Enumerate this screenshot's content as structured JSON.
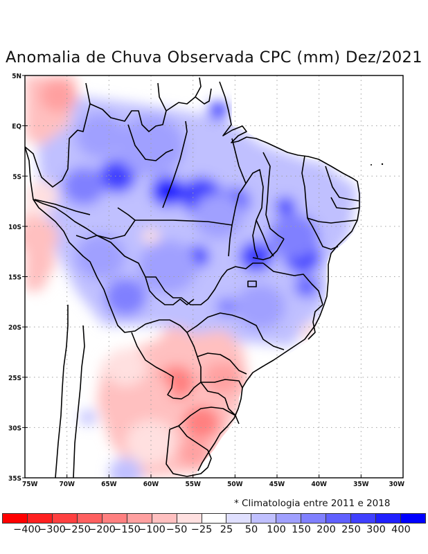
{
  "title": "Anomalia de Chuva Observada CPC (mm) Dez/2021",
  "note": "* Climatologia entre 2011 e 2018",
  "map": {
    "lon_range": [
      -75,
      -30
    ],
    "lat_range": [
      -35,
      5
    ],
    "lon_ticks": [
      {
        "value": -75,
        "label": "75W"
      },
      {
        "value": -70,
        "label": "70W"
      },
      {
        "value": -65,
        "label": "65W"
      },
      {
        "value": -60,
        "label": "60W"
      },
      {
        "value": -55,
        "label": "55W"
      },
      {
        "value": -50,
        "label": "50W"
      },
      {
        "value": -45,
        "label": "45W"
      },
      {
        "value": -40,
        "label": "40W"
      },
      {
        "value": -35,
        "label": "35W"
      },
      {
        "value": -30,
        "label": "30W"
      }
    ],
    "lat_ticks": [
      {
        "value": 5,
        "label": "5N"
      },
      {
        "value": 0,
        "label": "EQ"
      },
      {
        "value": -5,
        "label": "5S"
      },
      {
        "value": -10,
        "label": "10S"
      },
      {
        "value": -15,
        "label": "15S"
      },
      {
        "value": -20,
        "label": "20S"
      },
      {
        "value": -25,
        "label": "25S"
      },
      {
        "value": -30,
        "label": "30S"
      },
      {
        "value": -35,
        "label": "35S"
      }
    ],
    "anomaly_blobs": [
      {
        "lon": -71,
        "lat": 3,
        "value": -150,
        "r": 2.2
      },
      {
        "lon": -73.5,
        "lat": -11,
        "value": -100,
        "r": 2.5
      },
      {
        "lon": -73,
        "lat": -7,
        "value": -50,
        "r": 2
      },
      {
        "lon": -64,
        "lat": -5,
        "value": 250,
        "r": 2.2
      },
      {
        "lon": -58,
        "lat": -6.5,
        "value": 300,
        "r": 2
      },
      {
        "lon": -54,
        "lat": -7,
        "value": 250,
        "r": 2.5
      },
      {
        "lon": -50,
        "lat": -7.5,
        "value": 200,
        "r": 1.8
      },
      {
        "lon": -68,
        "lat": -6,
        "value": 150,
        "r": 2.5
      },
      {
        "lon": -60,
        "lat": -2,
        "value": 100,
        "r": 4
      },
      {
        "lon": -66,
        "lat": -1,
        "value": 100,
        "r": 3
      },
      {
        "lon": -52,
        "lat": 1.5,
        "value": 250,
        "r": 1.2
      },
      {
        "lon": -54.5,
        "lat": -13,
        "value": 300,
        "r": 1.4
      },
      {
        "lon": -47.5,
        "lat": -13,
        "value": 250,
        "r": 2
      },
      {
        "lon": -42,
        "lat": -13,
        "value": 250,
        "r": 2.2
      },
      {
        "lon": -44,
        "lat": -8,
        "value": 250,
        "r": 1.2
      },
      {
        "lon": -43,
        "lat": -11,
        "value": 150,
        "r": 3
      },
      {
        "lon": -58,
        "lat": -14,
        "value": 100,
        "r": 3.5
      },
      {
        "lon": -63,
        "lat": -17,
        "value": 150,
        "r": 2.5
      },
      {
        "lon": -66,
        "lat": -13,
        "value": 100,
        "r": 3
      },
      {
        "lon": -52,
        "lat": -9,
        "value": 100,
        "r": 3
      },
      {
        "lon": -47,
        "lat": -18,
        "value": 100,
        "r": 3
      },
      {
        "lon": -51,
        "lat": -18,
        "value": 150,
        "r": 1.2
      },
      {
        "lon": -41.5,
        "lat": -16,
        "value": 200,
        "r": 1.4
      },
      {
        "lon": -37.5,
        "lat": -7,
        "value": 50,
        "r": 2
      },
      {
        "lon": -40.5,
        "lat": -5,
        "value": 50,
        "r": 2
      },
      {
        "lon": -57,
        "lat": -25.5,
        "value": -200,
        "r": 2.2
      },
      {
        "lon": -54,
        "lat": -29.5,
        "value": -200,
        "r": 2.2
      },
      {
        "lon": -51.5,
        "lat": -25,
        "value": -150,
        "r": 2.2
      },
      {
        "lon": -55,
        "lat": -32.5,
        "value": -150,
        "r": 1.8
      },
      {
        "lon": -52,
        "lat": -22,
        "value": -100,
        "r": 2.2
      },
      {
        "lon": -61,
        "lat": -27,
        "value": -100,
        "r": 3.5
      },
      {
        "lon": -57,
        "lat": -21.5,
        "value": -100,
        "r": 2
      },
      {
        "lon": -60,
        "lat": -31.5,
        "value": -50,
        "r": 3
      },
      {
        "lon": -63,
        "lat": -24,
        "value": -50,
        "r": 2.5
      },
      {
        "lon": -41,
        "lat": -20.5,
        "value": -50,
        "r": 1.2
      },
      {
        "lon": -60,
        "lat": -11,
        "value": -50,
        "r": 1
      },
      {
        "lon": -67.5,
        "lat": -29,
        "value": 50,
        "r": 1
      },
      {
        "lon": -63,
        "lat": -34.5,
        "value": 50,
        "r": 2
      }
    ]
  },
  "legend": {
    "colors": [
      "#ff0000",
      "#ff2020",
      "#ff4040",
      "#ff6060",
      "#ff8080",
      "#ffa0a0",
      "#ffc0c0",
      "#ffe0e0",
      "#ffffff",
      "#e0e0ff",
      "#c0c0ff",
      "#a0a0ff",
      "#8080ff",
      "#6060ff",
      "#4040ff",
      "#2020ff",
      "#0000ff"
    ],
    "labels": [
      "−400",
      "−300",
      "−250",
      "−200",
      "−150",
      "−100",
      "−50",
      "−25",
      "25",
      "50",
      "100",
      "150",
      "200",
      "250",
      "300",
      "400"
    ]
  }
}
